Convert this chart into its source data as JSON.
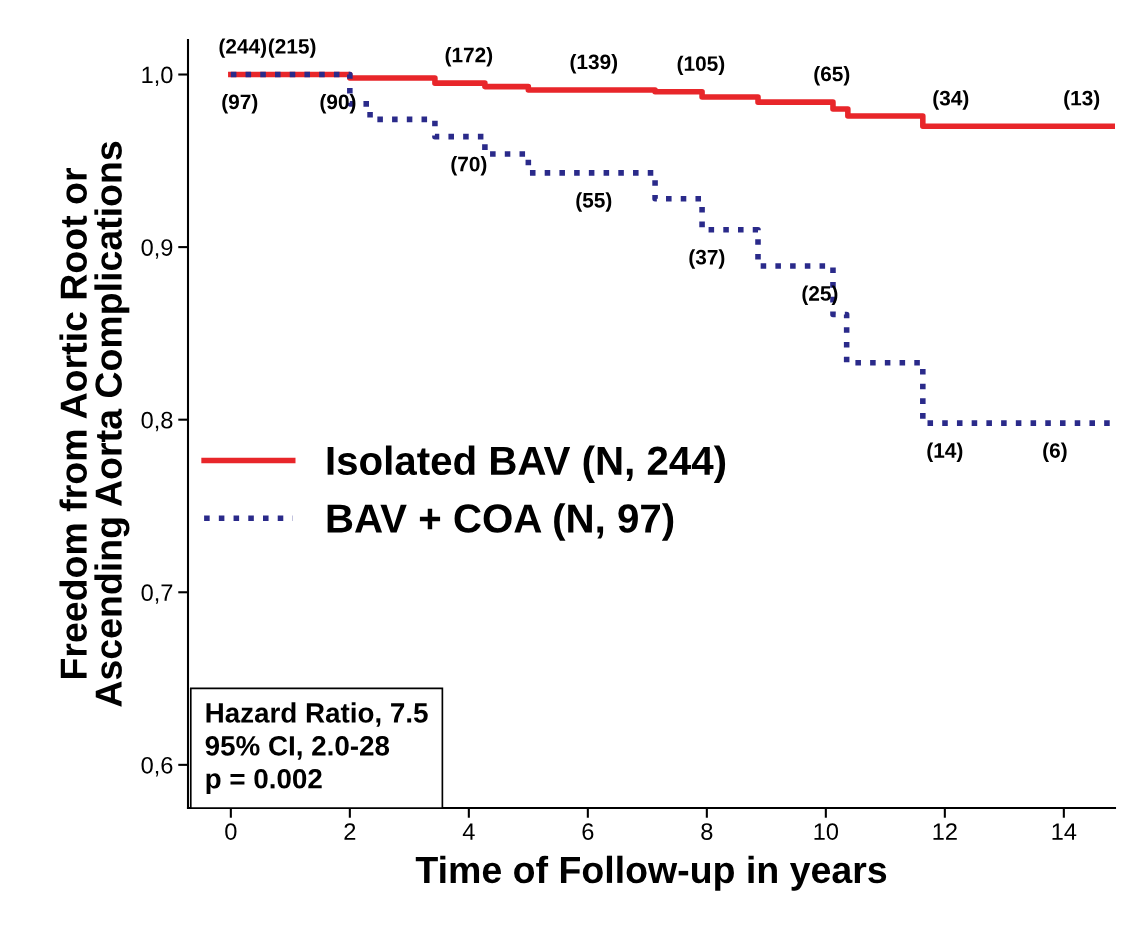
{
  "chart_data": {
    "type": "step",
    "xlabel": "Time of Follow-up in years",
    "ylabel": "Freedom from Aortic Root or\nAscending Aorta Complications",
    "xlim": [
      -0.72,
      14.86
    ],
    "ylim": [
      0.575,
      1.02
    ],
    "xticks": [
      0,
      2,
      4,
      6,
      8,
      10,
      12,
      14
    ],
    "yticks": [
      {
        "value": 0.6,
        "label": "0,6"
      },
      {
        "value": 0.7,
        "label": "0,7"
      },
      {
        "value": 0.8,
        "label": "0,8"
      },
      {
        "value": 0.9,
        "label": "0,9"
      },
      {
        "value": 1.0,
        "label": "1,0"
      }
    ],
    "grid": false,
    "legend": "left",
    "marker": "none",
    "series": [
      {
        "name": "Isolated BAV (N, 244)",
        "color": "#e8262a",
        "line_style": "solid",
        "x": [
          0,
          2.0,
          3.43,
          4.27,
          5.0,
          7.13,
          7.92,
          8.86,
          10.12,
          10.37,
          11.63,
          14.82
        ],
        "values": [
          1.0,
          0.998,
          0.995,
          0.993,
          0.991,
          0.99,
          0.987,
          0.984,
          0.98,
          0.976,
          0.97,
          0.97
        ]
      },
      {
        "name": "BAV + COA (N, 97)",
        "color": "#2a2a8a",
        "line_style": "dotted",
        "x": [
          0,
          2.0,
          2.34,
          3.43,
          4.27,
          5.0,
          7.13,
          7.92,
          8.86,
          10.12,
          10.35,
          11.63,
          14.82
        ],
        "values": [
          1.0,
          0.983,
          0.974,
          0.964,
          0.954,
          0.943,
          0.928,
          0.91,
          0.889,
          0.861,
          0.833,
          0.798,
          0.798
        ]
      }
    ],
    "annotations": [
      {
        "text": "(244)",
        "x": 0.2,
        "y": 1.0
      },
      {
        "text": "(215)",
        "x": 1.03,
        "y": 1.0
      },
      {
        "text": "(172)",
        "x": 4.0,
        "y": 0.995
      },
      {
        "text": "(139)",
        "x": 6.1,
        "y": 0.991
      },
      {
        "text": "(105)",
        "x": 7.9,
        "y": 0.99
      },
      {
        "text": "(65)",
        "x": 10.1,
        "y": 0.984
      },
      {
        "text": "(34)",
        "x": 12.1,
        "y": 0.97
      },
      {
        "text": "(13)",
        "x": 14.3,
        "y": 0.97
      },
      {
        "text": "(97)",
        "x": 0.15,
        "y": 1.0
      },
      {
        "text": "(90)",
        "x": 1.8,
        "y": 1.0
      },
      {
        "text": "(70)",
        "x": 4.0,
        "y": 0.964
      },
      {
        "text": "(55)",
        "x": 6.1,
        "y": 0.943
      },
      {
        "text": "(37)",
        "x": 8.0,
        "y": 0.91
      },
      {
        "text": "(25)",
        "x": 9.9,
        "y": 0.889
      },
      {
        "text": "(14)",
        "x": 12.0,
        "y": 0.798
      },
      {
        "text": "(6)",
        "x": 13.85,
        "y": 0.798
      },
      "Hazard Ratio, 7.5\n95% CI, 2.0-28\np = 0.002"
    ]
  }
}
